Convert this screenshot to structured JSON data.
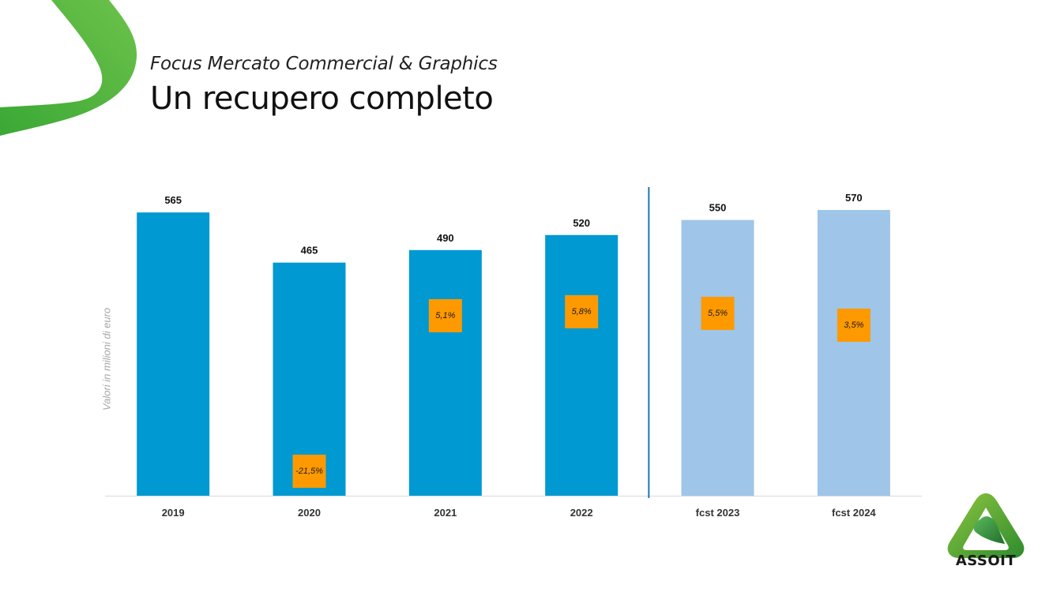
{
  "slide": {
    "subtitle": "Focus Mercato Commercial & Graphics",
    "title": "Un recupero completo"
  },
  "brand": {
    "logo_text": "ASSOIT",
    "green": "#3aa835",
    "light_green": "#8dc63f"
  },
  "chart_data": {
    "type": "bar",
    "ylabel": "Valori in   milioni di euro",
    "ylim": [
      0,
      600
    ],
    "categories": [
      "2019",
      "2020",
      "2021",
      "2022",
      "fcst 2023",
      "fcst 2024"
    ],
    "values": [
      565,
      465,
      490,
      520,
      550,
      570
    ],
    "value_labels": [
      "565",
      "465",
      "490",
      "520",
      "550",
      "570"
    ],
    "growth_labels": [
      "",
      "-21,5%",
      "5,1%",
      "5,8%",
      "5,5%",
      "3,5%"
    ],
    "forecast": [
      false,
      false,
      false,
      false,
      true,
      true
    ],
    "divider_after_index": 3,
    "colors": {
      "actual": "#0099d1",
      "forecast": "#9fc5e8",
      "growth_box": "#ff9900",
      "divider": "#1f77b4",
      "axis": "#d9d9d9"
    }
  }
}
